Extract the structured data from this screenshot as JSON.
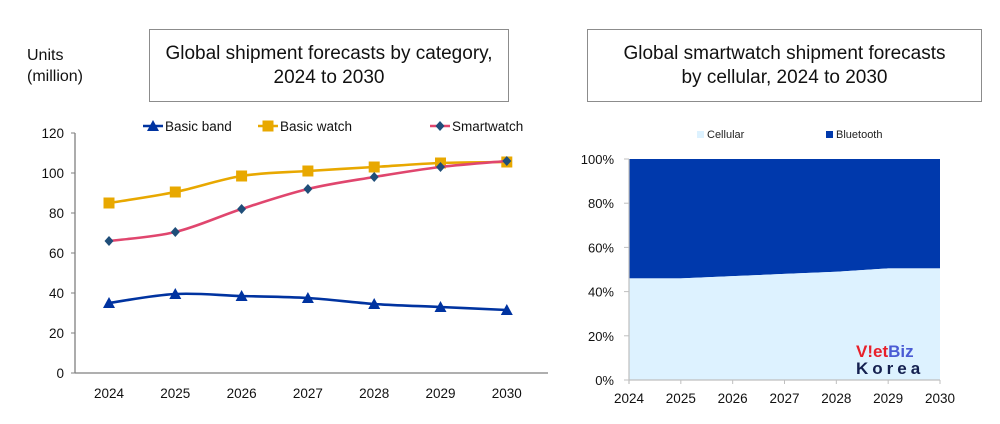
{
  "left": {
    "title_line1": "Global shipment forecasts by category,",
    "title_line2": "2024 to 2030",
    "units_line1": "Units",
    "units_line2": "(million)"
  },
  "right": {
    "title_line1": "Global smartwatch shipment forecasts",
    "title_line2": "by cellular, 2024 to 2030",
    "watermark_top": "V!etBiz",
    "watermark_bottom": "Korea"
  },
  "chart_data": [
    {
      "type": "line",
      "title": "Global shipment forecasts by category, 2024 to 2030",
      "ylabel": "Units (million)",
      "xlabel": "",
      "x": [
        "2024",
        "2025",
        "2026",
        "2027",
        "2028",
        "2029",
        "2030"
      ],
      "yticks": [
        0,
        20,
        40,
        60,
        80,
        100,
        120
      ],
      "ylim": [
        0,
        120
      ],
      "grid": false,
      "legend": "top",
      "series": [
        {
          "name": "Basic band",
          "color": "#0033a0",
          "marker": "triangle",
          "values": [
            35,
            39.5,
            38.5,
            37.5,
            34.5,
            33,
            31.5
          ]
        },
        {
          "name": "Basic watch",
          "color": "#e8a800",
          "marker": "square",
          "values": [
            85,
            90.5,
            98.5,
            101,
            103,
            105,
            105.5
          ]
        },
        {
          "name": "Smartwatch",
          "color": "#e0466e",
          "marker": "diamond",
          "marker_color": "#1f4e79",
          "values": [
            66,
            70.5,
            82,
            92,
            98,
            103,
            106
          ]
        }
      ]
    },
    {
      "type": "area",
      "stacked_percent": true,
      "title": "Global smartwatch shipment forecasts by cellular, 2024 to 2030",
      "xlabel": "",
      "ylabel": "",
      "x": [
        "2024",
        "2025",
        "2026",
        "2027",
        "2028",
        "2029",
        "2030"
      ],
      "yticks": [
        "0%",
        "20%",
        "40%",
        "60%",
        "80%",
        "100%"
      ],
      "ylim": [
        0,
        100
      ],
      "grid": false,
      "legend": "top",
      "series": [
        {
          "name": "Cellular",
          "color": "#ddf2ff",
          "values": [
            46,
            46,
            47,
            48,
            49,
            50.5,
            50.5
          ]
        },
        {
          "name": "Bluetooth",
          "color": "#0039ac",
          "values": [
            54,
            54,
            53,
            52,
            51,
            49.5,
            49.5
          ]
        }
      ]
    }
  ]
}
